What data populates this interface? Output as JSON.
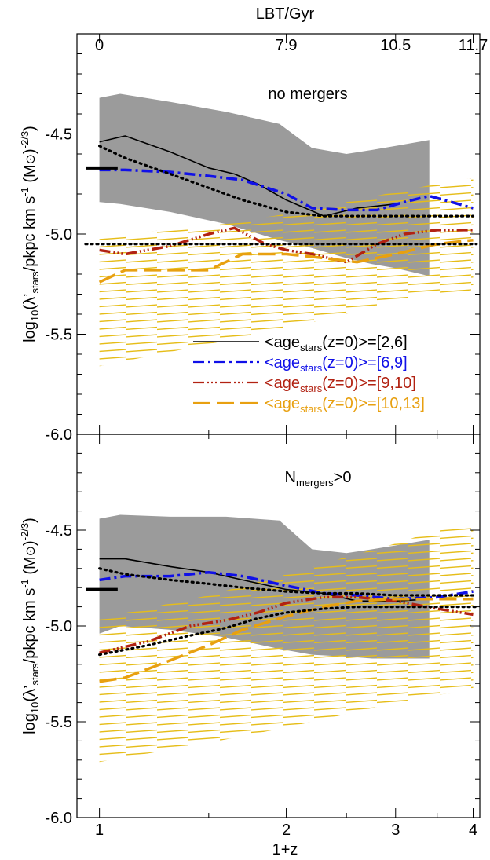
{
  "figure": {
    "top_axis_label": "LBT/Gyr",
    "top_ticks": [
      {
        "x": 1.0,
        "label": "0"
      },
      {
        "x": 2.0,
        "label": "7.9"
      },
      {
        "x": 3.0,
        "label": "10.5"
      },
      {
        "x": 4.0,
        "label": "11.7"
      }
    ],
    "xlabel": "1+z",
    "x_ticks": [
      1,
      2,
      3,
      4
    ],
    "y_ticks": [
      "-4.5",
      "-5.0",
      "-5.5",
      "-6.0"
    ],
    "ylabel_parts": {
      "prefix": "log",
      "log_base": "10",
      "open": "(λ’",
      "lambda_sub": "stars",
      "unit": "/pkpc km s",
      "sup1": "-1",
      "mass_open": " (M",
      "sun": "⊙",
      "mass_close": ")",
      "sup2": "-2/3",
      "close": ")"
    }
  },
  "colors": {
    "black": "#000000",
    "blue": "#1010e8",
    "red": "#b22212",
    "orange": "#e8a010",
    "grey_band": "#9b9b9b",
    "hatch": "#e6bd18"
  },
  "legend": [
    {
      "key": "black",
      "pre": "<age",
      "sub": "stars",
      "post": "(z=0)>=[2,6]"
    },
    {
      "key": "blue",
      "pre": "<age",
      "sub": "stars",
      "post": "(z=0)>=[6,9]"
    },
    {
      "key": "red",
      "pre": "<age",
      "sub": "stars",
      "post": "(z=0)>=[9,10]"
    },
    {
      "key": "orange",
      "pre": "<age",
      "sub": "stars",
      "post": "(z=0)>=[10,13]"
    }
  ],
  "chart_data": [
    {
      "type": "line",
      "title": "no mergers",
      "xscale": "log",
      "xlim": [
        0.92,
        4.1
      ],
      "ylim": [
        -6.0,
        -4.0
      ],
      "legend_position": "bottom-right",
      "z0_marker": {
        "x": [
          0.95,
          1.07
        ],
        "y": -4.67
      },
      "grey_band": {
        "x": [
          1.0,
          1.08,
          1.3,
          1.6,
          1.95,
          2.2,
          2.5,
          2.75,
          3.0,
          3.4
        ],
        "upper": [
          -4.32,
          -4.3,
          -4.34,
          -4.39,
          -4.45,
          -4.57,
          -4.6,
          -4.58,
          -4.56,
          -4.53
        ],
        "lower": [
          -4.84,
          -4.85,
          -4.89,
          -4.95,
          -5.03,
          -5.07,
          -5.12,
          -5.15,
          -5.17,
          -5.21
        ]
      },
      "hatched_band": {
        "x": [
          1.0,
          1.5,
          2.0,
          2.5,
          3.0,
          3.5,
          4.0
        ],
        "upper": [
          -5.01,
          -4.96,
          -4.9,
          -4.84,
          -4.79,
          -4.75,
          -4.72
        ],
        "lower": [
          -5.66,
          -5.55,
          -5.47,
          -5.4,
          -5.33,
          -5.3,
          -5.28
        ]
      },
      "reference_lines": [
        {
          "name": "dotted-median-high",
          "x": [
            1.0,
            1.1,
            1.3,
            1.5,
            1.7,
            2.0,
            2.3,
            2.6,
            3.0,
            3.5,
            4.0
          ],
          "y": [
            -4.56,
            -4.62,
            -4.7,
            -4.77,
            -4.83,
            -4.89,
            -4.91,
            -4.91,
            -4.91,
            -4.91,
            -4.91
          ]
        },
        {
          "name": "dotted-median-low",
          "x": [
            0.95,
            1.5,
            2.0,
            3.0,
            4.05
          ],
          "y": [
            -5.05,
            -5.05,
            -5.05,
            -5.05,
            -5.05
          ]
        }
      ],
      "series": [
        {
          "key": "black",
          "x": [
            1.0,
            1.1,
            1.3,
            1.5,
            1.65,
            1.8,
            2.0,
            2.3,
            2.6,
            2.8,
            3.0
          ],
          "y": [
            -4.54,
            -4.51,
            -4.59,
            -4.67,
            -4.7,
            -4.75,
            -4.83,
            -4.91,
            -4.87,
            -4.86,
            -4.85
          ]
        },
        {
          "key": "blue",
          "x": [
            1.0,
            1.1,
            1.3,
            1.5,
            1.7,
            2.0,
            2.2,
            2.5,
            2.8,
            3.1,
            3.4,
            4.0
          ],
          "y": [
            -4.68,
            -4.68,
            -4.69,
            -4.71,
            -4.73,
            -4.8,
            -4.87,
            -4.88,
            -4.88,
            -4.84,
            -4.81,
            -4.87
          ]
        },
        {
          "key": "red",
          "x": [
            1.0,
            1.1,
            1.3,
            1.5,
            1.65,
            1.85,
            2.0,
            2.2,
            2.5,
            2.8,
            3.1,
            3.5,
            4.0
          ],
          "y": [
            -5.08,
            -5.1,
            -5.06,
            -5.0,
            -4.97,
            -5.05,
            -5.08,
            -5.1,
            -5.14,
            -5.05,
            -5.0,
            -4.98,
            -4.98
          ]
        },
        {
          "key": "orange",
          "x": [
            1.0,
            1.1,
            1.3,
            1.5,
            1.7,
            2.0,
            2.3,
            2.6,
            3.0,
            3.5,
            4.0
          ],
          "y": [
            -5.24,
            -5.18,
            -5.18,
            -5.18,
            -5.1,
            -5.1,
            -5.12,
            -5.14,
            -5.1,
            -5.05,
            -5.03
          ]
        }
      ]
    },
    {
      "type": "line",
      "title": "N_mergers>0",
      "title_parts": {
        "pre": "N",
        "sub": "mergers",
        "post": ">0"
      },
      "xscale": "log",
      "xlim": [
        0.92,
        4.1
      ],
      "ylim": [
        -6.0,
        -4.0
      ],
      "legend_position": "none",
      "z0_marker": {
        "x": [
          0.95,
          1.07
        ],
        "y": -4.81
      },
      "grey_band": {
        "x": [
          1.0,
          1.08,
          1.3,
          1.6,
          1.95,
          2.2,
          2.5,
          2.75,
          3.0,
          3.4
        ],
        "upper": [
          -4.44,
          -4.42,
          -4.43,
          -4.43,
          -4.45,
          -4.6,
          -4.62,
          -4.6,
          -4.58,
          -4.55
        ],
        "lower": [
          -5.04,
          -5.0,
          -5.02,
          -5.06,
          -5.12,
          -5.15,
          -5.16,
          -5.17,
          -5.17,
          -5.17
        ]
      },
      "hatched_band": {
        "x": [
          1.0,
          1.5,
          2.0,
          2.5,
          3.0,
          3.5,
          4.0
        ],
        "upper": [
          -4.96,
          -4.84,
          -4.73,
          -4.64,
          -4.57,
          -4.5,
          -4.47
        ],
        "lower": [
          -5.71,
          -5.61,
          -5.53,
          -5.46,
          -5.4,
          -5.36,
          -5.34
        ]
      },
      "reference_lines": [
        {
          "name": "dotted-median-high",
          "x": [
            1.0,
            1.1,
            1.3,
            1.5,
            1.7,
            2.0,
            2.3,
            2.6,
            3.0,
            3.5,
            4.05
          ],
          "y": [
            -4.7,
            -4.73,
            -4.76,
            -4.78,
            -4.8,
            -4.82,
            -4.83,
            -4.83,
            -4.84,
            -4.84,
            -4.84
          ]
        },
        {
          "name": "dotted-median-low",
          "x": [
            1.0,
            1.2,
            1.4,
            1.6,
            1.8,
            2.0,
            2.3,
            2.6,
            3.0,
            3.5,
            4.05
          ],
          "y": [
            -5.15,
            -5.1,
            -5.05,
            -5.01,
            -4.96,
            -4.93,
            -4.91,
            -4.9,
            -4.9,
            -4.9,
            -4.9
          ]
        }
      ],
      "series": [
        {
          "key": "black",
          "x": [
            1.0,
            1.1,
            1.3,
            1.5,
            1.7,
            2.0,
            2.3,
            2.6,
            3.0,
            3.4
          ],
          "y": [
            -4.65,
            -4.65,
            -4.69,
            -4.72,
            -4.76,
            -4.81,
            -4.83,
            -4.87,
            -4.87,
            -4.86
          ]
        },
        {
          "key": "blue",
          "x": [
            1.0,
            1.1,
            1.3,
            1.5,
            1.7,
            2.0,
            2.3,
            2.6,
            3.0,
            3.5,
            4.0
          ],
          "y": [
            -4.76,
            -4.74,
            -4.74,
            -4.72,
            -4.74,
            -4.79,
            -4.83,
            -4.84,
            -4.86,
            -4.85,
            -4.82
          ]
        },
        {
          "key": "red",
          "x": [
            1.0,
            1.2,
            1.4,
            1.6,
            1.8,
            2.0,
            2.3,
            2.6,
            3.0,
            3.5,
            4.0
          ],
          "y": [
            -5.14,
            -5.08,
            -5.0,
            -4.97,
            -4.93,
            -4.88,
            -4.85,
            -4.85,
            -4.87,
            -4.91,
            -4.94
          ]
        },
        {
          "key": "orange",
          "x": [
            1.0,
            1.1,
            1.3,
            1.5,
            1.7,
            2.0,
            2.3,
            2.6,
            3.0,
            3.5,
            4.0
          ],
          "y": [
            -5.29,
            -5.27,
            -5.18,
            -5.1,
            -5.02,
            -4.95,
            -4.9,
            -4.87,
            -4.86,
            -4.86,
            -4.86
          ]
        }
      ]
    }
  ]
}
